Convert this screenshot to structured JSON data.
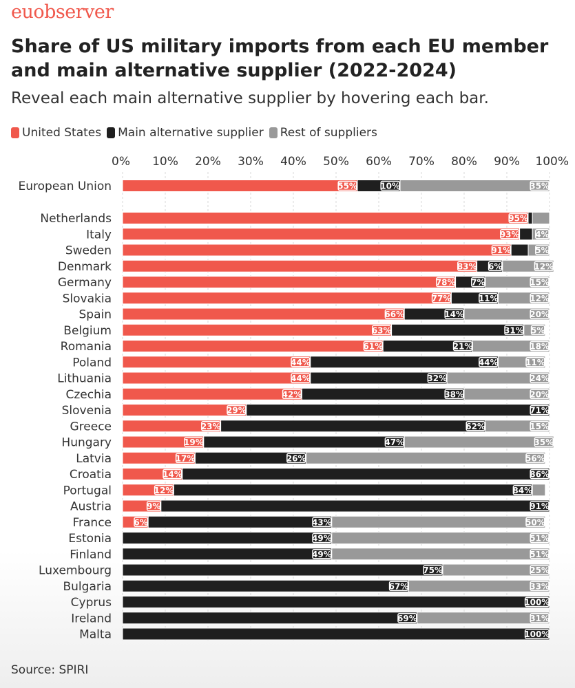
{
  "brand": "euobserver",
  "title": "Share of US military imports from each EU member and main alternative supplier (2022-2024)",
  "subtitle": "Reveal each main alternative supplier by hovering each bar.",
  "legend": [
    {
      "label": "United States",
      "color": "#f0584c"
    },
    {
      "label": "Main alternative supplier",
      "color": "#1f1f1f"
    },
    {
      "label": "Rest of suppliers",
      "color": "#999999"
    }
  ],
  "source": "Source: SPIRI",
  "chart_data": {
    "type": "bar",
    "orientation": "horizontal",
    "stacked": true,
    "title": "Share of US military imports from each EU member and main alternative supplier (2022-2024)",
    "xlabel": "",
    "ylabel": "",
    "xlim": [
      0,
      100
    ],
    "x_ticks": [
      "0%",
      "10%",
      "20%",
      "30%",
      "40%",
      "50%",
      "60%",
      "70%",
      "80%",
      "90%",
      "100%"
    ],
    "categories": [
      "European Union",
      "Netherlands",
      "Italy",
      "Sweden",
      "Denmark",
      "Germany",
      "Slovakia",
      "Spain",
      "Belgium",
      "Romania",
      "Poland",
      "Lithuania",
      "Czechia",
      "Slovenia",
      "Greece",
      "Hungary",
      "Latvia",
      "Croatia",
      "Portugal",
      "Austria",
      "France",
      "Estonia",
      "Finland",
      "Luxembourg",
      "Bulgaria",
      "Cyprus",
      "Ireland",
      "Malta"
    ],
    "series": [
      {
        "name": "United States",
        "color": "#f0584c",
        "values": [
          55,
          95,
          93,
          91,
          83,
          78,
          77,
          66,
          63,
          61,
          44,
          44,
          42,
          29,
          23,
          19,
          17,
          14,
          12,
          9,
          6,
          0,
          0,
          0,
          0,
          0,
          0,
          0
        ]
      },
      {
        "name": "Main alternative supplier",
        "color": "#1f1f1f",
        "values": [
          10,
          1,
          3,
          4,
          6,
          7,
          11,
          14,
          31,
          21,
          44,
          32,
          38,
          71,
          62,
          47,
          26,
          86,
          84,
          91,
          43,
          49,
          49,
          75,
          67,
          100,
          69,
          100
        ]
      },
      {
        "name": "Rest of suppliers",
        "color": "#999999",
        "values": [
          35,
          4,
          4,
          5,
          12,
          15,
          12,
          20,
          5,
          18,
          11,
          24,
          20,
          0,
          15,
          35,
          56,
          0,
          3,
          0,
          50,
          51,
          51,
          25,
          33,
          0,
          31,
          0
        ]
      }
    ],
    "data_labels": [
      [
        "55%",
        "10%",
        "35%"
      ],
      [
        "95%",
        "",
        ""
      ],
      [
        "93%",
        "",
        "4%"
      ],
      [
        "91%",
        "",
        "5%"
      ],
      [
        "83%",
        "6%",
        "12%"
      ],
      [
        "78%",
        "7%",
        "15%"
      ],
      [
        "77%",
        "11%",
        "12%"
      ],
      [
        "66%",
        "14%",
        "20%"
      ],
      [
        "63%",
        "31%",
        "5%"
      ],
      [
        "61%",
        "21%",
        "18%"
      ],
      [
        "44%",
        "44%",
        "11%"
      ],
      [
        "44%",
        "32%",
        "24%"
      ],
      [
        "42%",
        "38%",
        "20%"
      ],
      [
        "29%",
        "71%",
        ""
      ],
      [
        "23%",
        "62%",
        "15%"
      ],
      [
        "19%",
        "47%",
        "35%"
      ],
      [
        "17%",
        "26%",
        "56%"
      ],
      [
        "14%",
        "86%",
        ""
      ],
      [
        "12%",
        "84%",
        ""
      ],
      [
        "9%",
        "91%",
        ""
      ],
      [
        "6%",
        "43%",
        "50%"
      ],
      [
        "",
        "49%",
        "51%"
      ],
      [
        "",
        "49%",
        "51%"
      ],
      [
        "",
        "75%",
        "25%"
      ],
      [
        "",
        "67%",
        "33%"
      ],
      [
        "",
        "100%",
        ""
      ],
      [
        "",
        "69%",
        "31%"
      ],
      [
        "",
        "100%",
        ""
      ]
    ],
    "gridlines": true,
    "legend_position": "top-left"
  }
}
